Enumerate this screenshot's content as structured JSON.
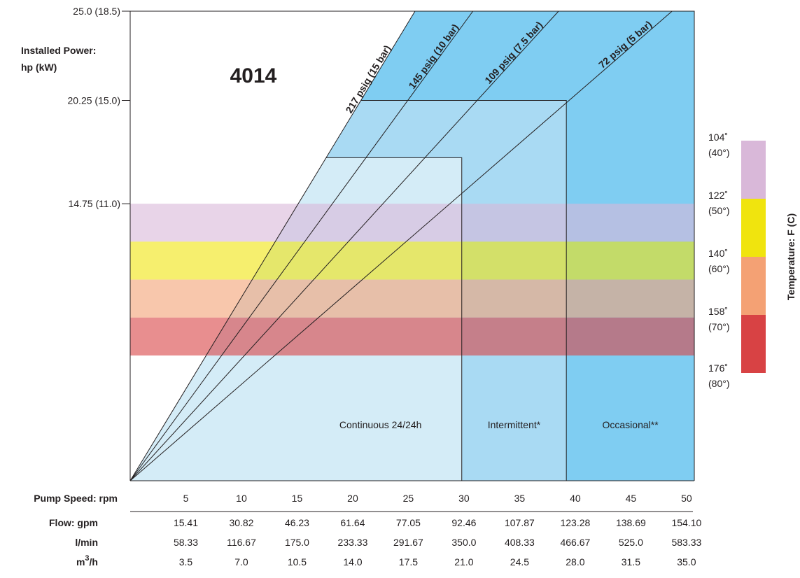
{
  "chart_data": {
    "type": "area",
    "model": "4014",
    "y_axis": {
      "label_line1": "Installed Power:",
      "label_line2": "hp (kW)",
      "ticks": [
        {
          "value": 25.0,
          "label": "25.0 (18.5)"
        },
        {
          "value": 20.25,
          "label": "20.25 (15.0)"
        },
        {
          "value": 14.75,
          "label": "14.75 (11.0)"
        }
      ],
      "range": [
        0,
        25.0
      ]
    },
    "x_axis": {
      "label": "Pump Speed: rpm",
      "ticks": [
        5,
        10,
        15,
        20,
        25,
        30,
        35,
        40,
        45,
        50
      ],
      "range": [
        0,
        50.7
      ]
    },
    "flow_table": {
      "rows": [
        {
          "label": "Flow: gpm",
          "values": [
            "15.41",
            "30.82",
            "46.23",
            "61.64",
            "77.05",
            "92.46",
            "107.87",
            "123.28",
            "138.69",
            "154.10"
          ]
        },
        {
          "label": "l/min",
          "values": [
            "58.33",
            "116.67",
            "175.0",
            "233.33",
            "291.67",
            "350.0",
            "408.33",
            "466.67",
            "525.0",
            "583.33"
          ]
        },
        {
          "label_base": "m",
          "label_sup": "3",
          "label_tail": "/h",
          "values": [
            "3.5",
            "7.0",
            "10.5",
            "14.0",
            "17.5",
            "21.0",
            "24.5",
            "28.0",
            "31.5",
            "35.0"
          ]
        }
      ]
    },
    "pressure_lines": [
      {
        "label": "217 psig (15 bar)",
        "end_x": 25.6,
        "end_y": 25.0
      },
      {
        "label": "145 psig (10 bar)",
        "end_x": 30.8,
        "end_y": 25.0
      },
      {
        "label": "109 psig (7.5 bar)",
        "end_x": 38.5,
        "end_y": 25.0
      },
      {
        "label": "72 psig (5 bar)",
        "end_x": 48.7,
        "end_y": 25.0
      }
    ],
    "duty_zones": [
      {
        "label": "Continuous 24/24h",
        "max_speed": 29.8,
        "max_power": 17.2,
        "color": "#d4ecf7"
      },
      {
        "label": "Intermittent*",
        "max_speed": 39.2,
        "max_power": 20.25,
        "color": "#a9daf3"
      },
      {
        "label": "Occasional**",
        "max_speed": 50.7,
        "max_power": 25.0,
        "color": "#7fcdf2"
      }
    ],
    "temperature_bands": [
      {
        "top": "104˚",
        "top_c": "(40°)",
        "color": "#d9b8d9"
      },
      {
        "top": "122˚",
        "top_c": "(50°)",
        "color": "#f0e40e"
      },
      {
        "top": "140˚",
        "top_c": "(60°)",
        "color": "#f4a174"
      },
      {
        "top": "158˚",
        "top_c": "(70°)",
        "color": "#d84244"
      }
    ],
    "temperature_end": {
      "label": "176˚",
      "label_c": "(80°)"
    },
    "temperature_axis_label": "Temperature: F (C)"
  }
}
